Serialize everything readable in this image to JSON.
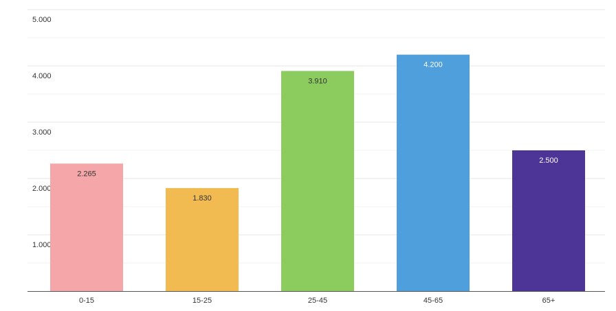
{
  "chart_data": {
    "type": "bar",
    "title": "",
    "xlabel": "",
    "ylabel": "",
    "categories": [
      "0-15",
      "15-25",
      "25-45",
      "45-65",
      "65+"
    ],
    "values": [
      2265,
      1830,
      3910,
      4200,
      2500
    ],
    "value_labels": [
      "2.265",
      "1.830",
      "3.910",
      "4.200",
      "2.500"
    ],
    "ylim": [
      0,
      5000
    ],
    "yticks": [
      1000,
      2000,
      3000,
      4000,
      5000
    ],
    "ytick_labels": [
      "1.000",
      "2.000",
      "3.000",
      "4.000",
      "5.000"
    ],
    "grid": true,
    "legend": "none",
    "colors": [
      "#f4a6a8",
      "#f2bb52",
      "#8ccb5e",
      "#4e9fdb",
      "#4c3597"
    ],
    "label_colors": [
      "#333333",
      "#333333",
      "#333333",
      "#ffffff",
      "#ffffff"
    ],
    "grid_color": "#e6e6e6",
    "axis_color": "#555555"
  }
}
